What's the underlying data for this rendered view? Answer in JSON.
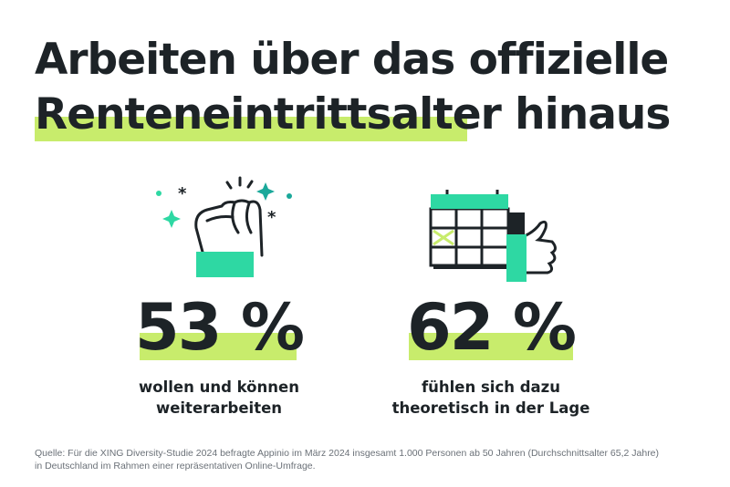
{
  "title": {
    "line1": "Arbeiten über das offizielle",
    "line2_highlight": "Renteneintrittsalter",
    "line2_rest": "hinaus"
  },
  "stats": [
    {
      "value": "53 %",
      "caption1": "wollen und können",
      "caption2": "weiterarbeiten",
      "icon": "raised-fist-icon"
    },
    {
      "value": "62 %",
      "caption1": "fühlen sich dazu",
      "caption2": "theoretisch in der Lage",
      "icon": "calendar-thumbs-up-icon"
    }
  ],
  "footnote": {
    "line1": "Quelle: Für die XING Diversity-Studie 2024 befragte Appinio im März 2024 insgesamt 1.000 Personen ab 50 Jahren (Durchschnittsalter 65,2 Jahre)",
    "line2": "in Deutschland im Rahmen einer repräsentativen Online-Umfrage."
  },
  "colors": {
    "accent_green": "#2ed8a3",
    "highlight_lime": "#c8ec6c",
    "text": "#1d2327"
  }
}
